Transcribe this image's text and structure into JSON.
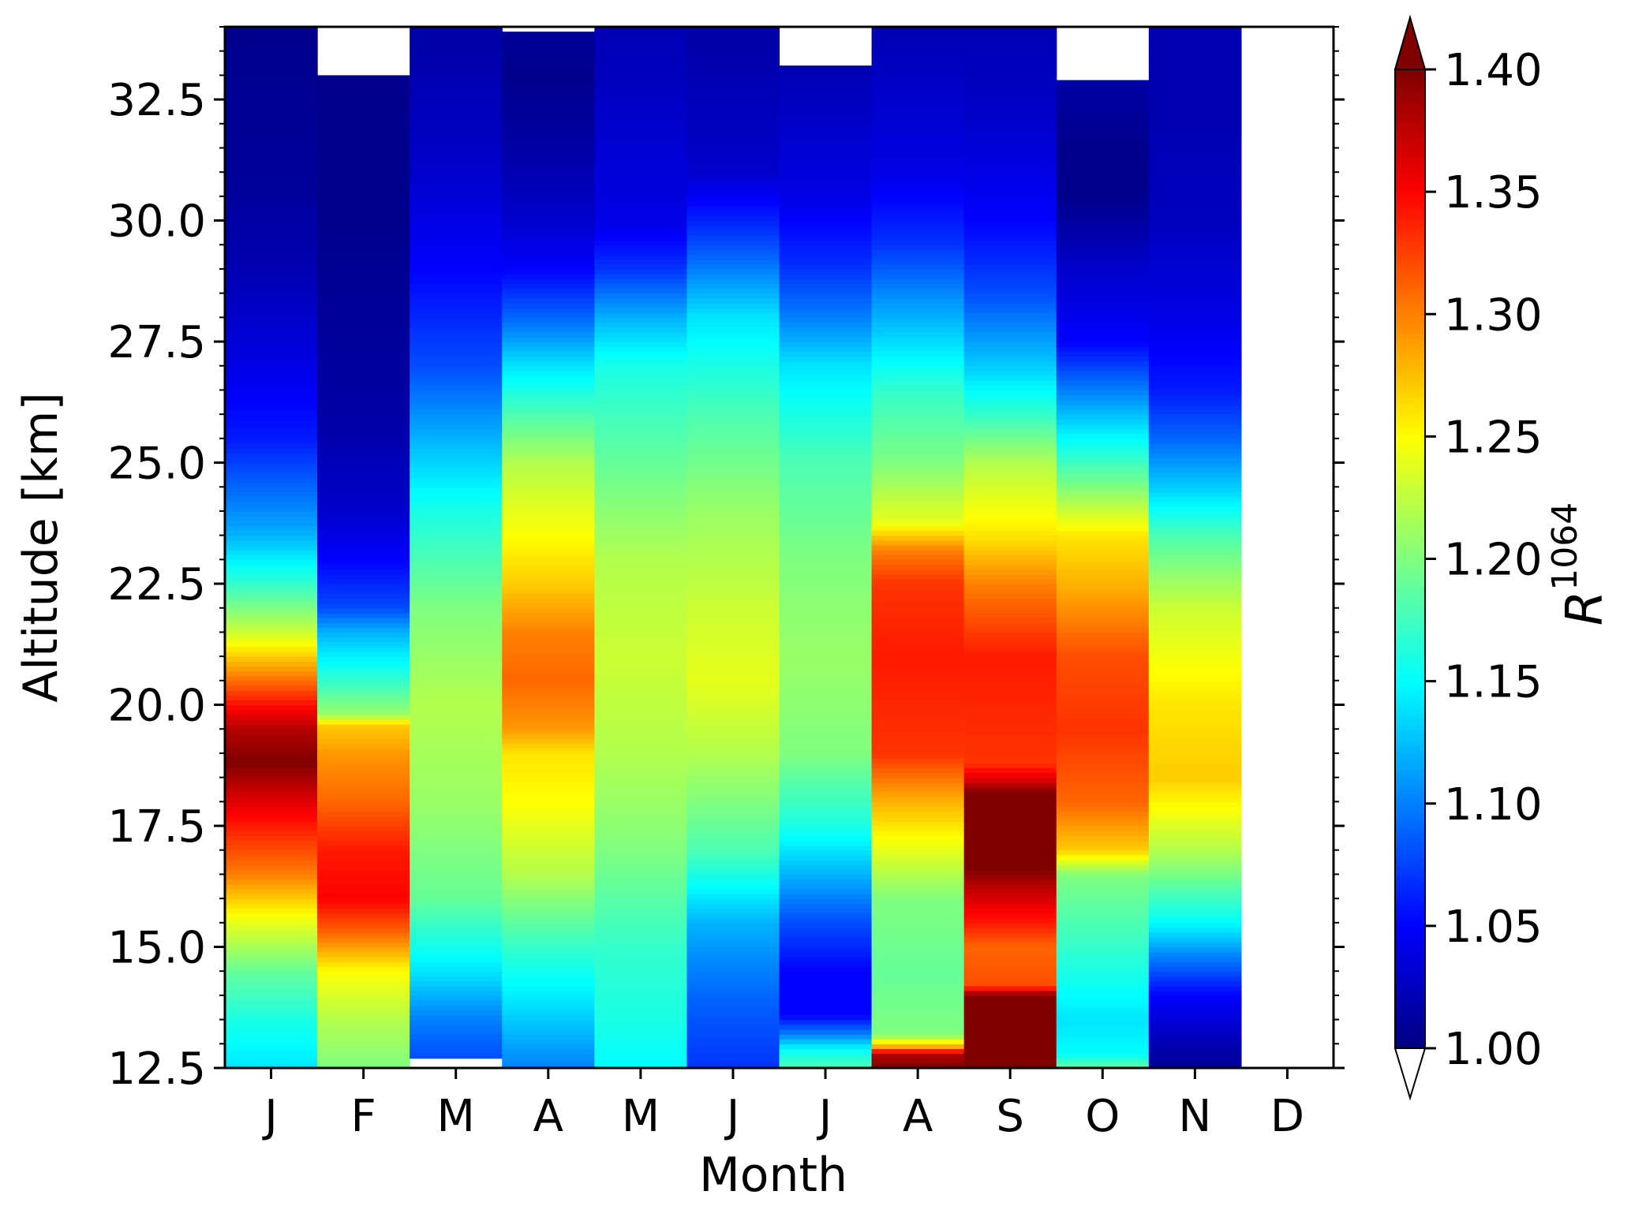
{
  "chart_data": {
    "type": "heatmap",
    "xlabel": "Month",
    "ylabel": "Altitude [km]",
    "categories": [
      "J",
      "F",
      "M",
      "A",
      "M",
      "J",
      "J",
      "A",
      "S",
      "O",
      "N",
      "D"
    ],
    "ylim": [
      12.5,
      34
    ],
    "yticks": [
      "12.5",
      "15.0",
      "17.5",
      "20.0",
      "22.5",
      "25.0",
      "27.5",
      "30.0",
      "32.5"
    ],
    "colorbar": {
      "label_base": "R",
      "label_sup": "1064",
      "min": 1.0,
      "max": 1.4,
      "ticks": [
        "1.00",
        "1.05",
        "1.10",
        "1.15",
        "1.20",
        "1.25",
        "1.30",
        "1.35",
        "1.40"
      ],
      "extend": "both",
      "colormap": "jet"
    },
    "columns": [
      {
        "month": "J",
        "top": 34.0,
        "profile": [
          [
            12.5,
            1.14
          ],
          [
            13.5,
            1.16
          ],
          [
            14.5,
            1.19
          ],
          [
            15.5,
            1.24
          ],
          [
            16.5,
            1.3
          ],
          [
            17.5,
            1.34
          ],
          [
            18.2,
            1.37
          ],
          [
            18.8,
            1.4
          ],
          [
            19.5,
            1.38
          ],
          [
            20.2,
            1.33
          ],
          [
            21.0,
            1.27
          ],
          [
            21.5,
            1.23
          ],
          [
            22.5,
            1.17
          ],
          [
            23.5,
            1.12
          ],
          [
            24.5,
            1.09
          ],
          [
            25.5,
            1.06
          ],
          [
            27.0,
            1.04
          ],
          [
            29.0,
            1.02
          ],
          [
            31.0,
            1.01
          ],
          [
            34.0,
            1.005
          ]
        ]
      },
      {
        "month": "F",
        "top": 33.0,
        "profile": [
          [
            12.5,
            1.2
          ],
          [
            13.5,
            1.22
          ],
          [
            14.5,
            1.25
          ],
          [
            15.3,
            1.31
          ],
          [
            16.0,
            1.35
          ],
          [
            17.0,
            1.34
          ],
          [
            18.0,
            1.31
          ],
          [
            19.0,
            1.29
          ],
          [
            19.6,
            1.27
          ],
          [
            19.8,
            1.21
          ],
          [
            20.5,
            1.17
          ],
          [
            21.5,
            1.12
          ],
          [
            22.0,
            1.08
          ],
          [
            23.0,
            1.05
          ],
          [
            24.0,
            1.03
          ],
          [
            26.0,
            1.015
          ],
          [
            28.0,
            1.01
          ],
          [
            30.0,
            1.005
          ],
          [
            33.0,
            1.005
          ]
        ]
      },
      {
        "month": "M",
        "top": 34.0,
        "profile": [
          [
            12.7,
            1.08
          ],
          [
            13.5,
            1.1
          ],
          [
            14.5,
            1.14
          ],
          [
            16.0,
            1.19
          ],
          [
            18.0,
            1.21
          ],
          [
            20.0,
            1.22
          ],
          [
            22.0,
            1.2
          ],
          [
            24.0,
            1.16
          ],
          [
            25.5,
            1.12
          ],
          [
            27.0,
            1.08
          ],
          [
            29.0,
            1.05
          ],
          [
            31.0,
            1.03
          ],
          [
            34.0,
            1.015
          ]
        ]
      },
      {
        "month": "A",
        "top": 33.9,
        "profile": [
          [
            12.5,
            1.1
          ],
          [
            13.5,
            1.13
          ],
          [
            15.0,
            1.17
          ],
          [
            16.5,
            1.22
          ],
          [
            18.0,
            1.25
          ],
          [
            19.0,
            1.26
          ],
          [
            19.5,
            1.29
          ],
          [
            20.5,
            1.31
          ],
          [
            21.5,
            1.3
          ],
          [
            22.5,
            1.27
          ],
          [
            23.5,
            1.25
          ],
          [
            25.0,
            1.22
          ],
          [
            26.0,
            1.18
          ],
          [
            27.0,
            1.14
          ],
          [
            28.0,
            1.09
          ],
          [
            29.0,
            1.05
          ],
          [
            30.0,
            1.03
          ],
          [
            31.5,
            1.015
          ],
          [
            33.0,
            1.005
          ],
          [
            33.9,
            1.01
          ]
        ]
      },
      {
        "month": "M",
        "top": 34.0,
        "profile": [
          [
            12.5,
            1.15
          ],
          [
            13.5,
            1.16
          ],
          [
            15.0,
            1.17
          ],
          [
            17.0,
            1.2
          ],
          [
            19.0,
            1.22
          ],
          [
            21.0,
            1.23
          ],
          [
            23.0,
            1.22
          ],
          [
            25.0,
            1.19
          ],
          [
            27.0,
            1.16
          ],
          [
            28.0,
            1.12
          ],
          [
            29.0,
            1.07
          ],
          [
            30.0,
            1.04
          ],
          [
            32.0,
            1.03
          ],
          [
            34.0,
            1.02
          ]
        ]
      },
      {
        "month": "J",
        "top": 34.0,
        "profile": [
          [
            12.5,
            1.07
          ],
          [
            14.0,
            1.09
          ],
          [
            15.5,
            1.12
          ],
          [
            17.0,
            1.18
          ],
          [
            19.0,
            1.22
          ],
          [
            20.5,
            1.24
          ],
          [
            22.0,
            1.23
          ],
          [
            24.0,
            1.21
          ],
          [
            26.0,
            1.18
          ],
          [
            28.0,
            1.14
          ],
          [
            29.5,
            1.08
          ],
          [
            31.0,
            1.03
          ],
          [
            34.0,
            1.015
          ]
        ]
      },
      {
        "month": "J",
        "top": 33.2,
        "profile": [
          [
            12.5,
            1.18
          ],
          [
            12.9,
            1.15
          ],
          [
            13.2,
            1.1
          ],
          [
            13.6,
            1.05
          ],
          [
            14.5,
            1.05
          ],
          [
            15.5,
            1.08
          ],
          [
            16.5,
            1.12
          ],
          [
            17.5,
            1.16
          ],
          [
            19.0,
            1.2
          ],
          [
            21.0,
            1.21
          ],
          [
            23.0,
            1.2
          ],
          [
            25.0,
            1.18
          ],
          [
            27.0,
            1.14
          ],
          [
            28.0,
            1.1
          ],
          [
            29.0,
            1.07
          ],
          [
            30.5,
            1.04
          ],
          [
            33.2,
            1.02
          ]
        ]
      },
      {
        "month": "A",
        "top": 34.0,
        "profile": [
          [
            12.5,
            1.4
          ],
          [
            12.8,
            1.38
          ],
          [
            12.9,
            1.3
          ],
          [
            13.0,
            1.26
          ],
          [
            13.2,
            1.2
          ],
          [
            14.5,
            1.19
          ],
          [
            16.0,
            1.2
          ],
          [
            17.0,
            1.24
          ],
          [
            18.0,
            1.28
          ],
          [
            19.0,
            1.33
          ],
          [
            21.0,
            1.34
          ],
          [
            22.5,
            1.33
          ],
          [
            23.2,
            1.3
          ],
          [
            23.8,
            1.24
          ],
          [
            25.0,
            1.2
          ],
          [
            26.5,
            1.17
          ],
          [
            28.0,
            1.12
          ],
          [
            29.5,
            1.07
          ],
          [
            31.0,
            1.04
          ],
          [
            34.0,
            1.02
          ]
        ]
      },
      {
        "month": "S",
        "top": 34.0,
        "profile": [
          [
            12.5,
            1.4
          ],
          [
            14.0,
            1.4
          ],
          [
            14.2,
            1.32
          ],
          [
            15.0,
            1.31
          ],
          [
            15.5,
            1.34
          ],
          [
            16.3,
            1.38
          ],
          [
            16.6,
            1.4
          ],
          [
            18.2,
            1.4
          ],
          [
            18.4,
            1.37
          ],
          [
            18.8,
            1.33
          ],
          [
            21.0,
            1.34
          ],
          [
            22.5,
            1.3
          ],
          [
            23.5,
            1.26
          ],
          [
            25.0,
            1.22
          ],
          [
            26.0,
            1.17
          ],
          [
            27.0,
            1.13
          ],
          [
            28.5,
            1.08
          ],
          [
            30.0,
            1.05
          ],
          [
            32.0,
            1.03
          ],
          [
            34.0,
            1.02
          ]
        ]
      },
      {
        "month": "O",
        "top": 32.9,
        "profile": [
          [
            12.5,
            1.19
          ],
          [
            12.8,
            1.15
          ],
          [
            13.5,
            1.14
          ],
          [
            15.0,
            1.17
          ],
          [
            16.5,
            1.2
          ],
          [
            17.0,
            1.27
          ],
          [
            18.0,
            1.31
          ],
          [
            19.5,
            1.33
          ],
          [
            21.0,
            1.32
          ],
          [
            22.5,
            1.28
          ],
          [
            23.5,
            1.26
          ],
          [
            24.5,
            1.2
          ],
          [
            25.5,
            1.15
          ],
          [
            26.5,
            1.1
          ],
          [
            27.5,
            1.05
          ],
          [
            29.0,
            1.03
          ],
          [
            30.5,
            1.005
          ],
          [
            31.5,
            1.005
          ],
          [
            32.9,
            1.015
          ]
        ]
      },
      {
        "month": "N",
        "top": 34.0,
        "profile": [
          [
            12.5,
            1.01
          ],
          [
            13.0,
            1.02
          ],
          [
            14.0,
            1.05
          ],
          [
            14.8,
            1.1
          ],
          [
            15.5,
            1.15
          ],
          [
            17.0,
            1.22
          ],
          [
            18.5,
            1.27
          ],
          [
            20.0,
            1.26
          ],
          [
            22.0,
            1.23
          ],
          [
            23.5,
            1.18
          ],
          [
            24.5,
            1.13
          ],
          [
            25.5,
            1.09
          ],
          [
            26.5,
            1.06
          ],
          [
            28.0,
            1.04
          ],
          [
            30.0,
            1.025
          ],
          [
            32.0,
            1.02
          ],
          [
            34.0,
            1.02
          ]
        ]
      },
      {
        "month": "D",
        "top": null,
        "profile": []
      }
    ]
  }
}
